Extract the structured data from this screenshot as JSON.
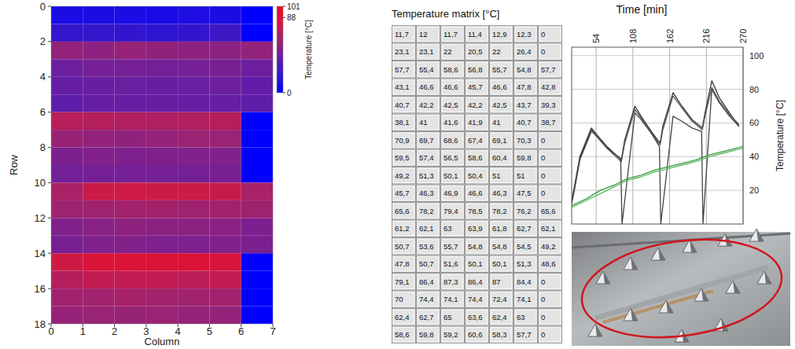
{
  "chart_data": [
    {
      "type": "heatmap",
      "xlabel": "Column",
      "ylabel": "Row",
      "xlim": [
        0,
        7
      ],
      "ylim": [
        0,
        18
      ],
      "xticks": [
        0,
        1,
        2,
        3,
        4,
        5,
        6,
        7
      ],
      "yticks": [
        0,
        2,
        4,
        6,
        8,
        10,
        12,
        14,
        16,
        18
      ],
      "cells": [
        [
          11.7,
          12,
          11.7,
          11.4,
          12.9,
          12.3,
          0
        ],
        [
          23.1,
          23.1,
          22,
          20.5,
          22,
          26.4,
          0
        ],
        [
          57.7,
          55.4,
          58.6,
          56.8,
          55.7,
          54.8,
          57.7
        ],
        [
          43.1,
          46.6,
          46.6,
          45.7,
          46.6,
          47.8,
          42.8
        ],
        [
          40.7,
          42.2,
          42.5,
          42.2,
          42.5,
          43.7,
          39.3
        ],
        [
          38.1,
          41,
          41.6,
          41.9,
          41,
          40.7,
          38.7
        ],
        [
          70.9,
          69.7,
          68.6,
          67.4,
          69.1,
          70.3,
          0
        ],
        [
          59.5,
          57.4,
          56.5,
          58.6,
          60.4,
          59.8,
          0
        ],
        [
          49.2,
          51.3,
          50.1,
          50.4,
          51,
          51,
          0
        ],
        [
          45.7,
          46.3,
          46.9,
          46.6,
          46.3,
          47.5,
          0
        ],
        [
          65.6,
          78.2,
          79.4,
          78.5,
          78.2,
          76.2,
          65.6
        ],
        [
          61.2,
          62.1,
          63,
          63.9,
          61.8,
          62.7,
          62.1
        ],
        [
          50.7,
          53.6,
          55.7,
          54.8,
          54.8,
          54.5,
          49.2
        ],
        [
          47.8,
          50.7,
          51.6,
          50.1,
          50.1,
          51.3,
          48.6
        ],
        [
          79.1,
          86.4,
          87.3,
          86.4,
          87,
          84.4,
          0
        ],
        [
          70,
          74.4,
          74.1,
          74.4,
          72.4,
          74.1,
          0
        ],
        [
          62.4,
          62.7,
          65,
          63.6,
          62.4,
          63,
          0
        ],
        [
          58.6,
          59.8,
          59.2,
          60.6,
          58.3,
          57.7,
          0
        ]
      ],
      "colorbar": {
        "label": "Temperature [°C]",
        "range": [
          0,
          101
        ],
        "ticks": [
          0,
          88,
          101
        ]
      }
    },
    {
      "type": "line",
      "title": "Time [min]",
      "ylabel": "Temperature [°C]",
      "xlim": [
        18,
        270
      ],
      "ylim": [
        0,
        105
      ],
      "xticks": [
        54,
        108,
        162,
        216,
        270
      ],
      "yticks": [
        20,
        40,
        60,
        80,
        100
      ],
      "grid": true,
      "series": [
        {
          "color": "#333333",
          "x": [
            18,
            22,
            30,
            47,
            55,
            70,
            91,
            96,
            111,
            120,
            135,
            148,
            152,
            167,
            180,
            195,
            210,
            214,
            224,
            235,
            250,
            264
          ],
          "values": [
            14,
            22,
            40,
            57,
            53,
            46,
            38,
            50,
            70,
            64,
            55,
            48,
            58,
            78,
            70,
            62,
            57,
            66,
            85,
            75,
            66,
            58
          ]
        },
        {
          "color": "#555555",
          "x": [
            18,
            22,
            30,
            47,
            55,
            70,
            91,
            96,
            111,
            120,
            135,
            148,
            152,
            167,
            180,
            195,
            210,
            214,
            224,
            235,
            250,
            264
          ],
          "values": [
            12,
            20,
            38,
            55,
            52,
            45,
            37,
            48,
            68,
            63,
            54,
            47,
            56,
            76,
            69,
            61,
            56,
            64,
            81,
            73,
            65,
            59
          ]
        },
        {
          "color": "#444444",
          "x": [
            18,
            22,
            30,
            47,
            55,
            70,
            90,
            92,
            111,
            120,
            135,
            147,
            149,
            167,
            180,
            195,
            209,
            211,
            224,
            235,
            250,
            264
          ],
          "values": [
            13,
            21,
            39,
            56,
            52,
            45,
            39,
            0,
            66,
            62,
            54,
            46,
            0,
            64,
            61,
            57,
            55,
            0,
            80,
            72,
            64,
            58
          ]
        },
        {
          "color": "#3a9a3a",
          "x": [
            18,
            40,
            60,
            80,
            100,
            120,
            140,
            160,
            180,
            200,
            220,
            240,
            260,
            270
          ],
          "values": [
            11,
            15,
            20,
            23,
            27,
            29,
            32,
            34,
            36,
            38,
            41,
            43,
            45,
            46
          ]
        },
        {
          "color": "#5cb85c",
          "x": [
            18,
            40,
            60,
            80,
            100,
            120,
            140,
            160,
            180,
            200,
            220,
            240,
            260,
            270
          ],
          "values": [
            10,
            14,
            18,
            22,
            26,
            28,
            31,
            33,
            35,
            37,
            40,
            42,
            44,
            45
          ]
        }
      ]
    }
  ],
  "table": {
    "title": "Temperature matrix [°C]",
    "rows": [
      [
        "11,7",
        "12",
        "11,7",
        "11,4",
        "12,9",
        "12,3",
        "0"
      ],
      [
        "23,1",
        "23,1",
        "22",
        "20,5",
        "22",
        "26,4",
        "0"
      ],
      [
        "57,7",
        "55,4",
        "58,6",
        "56,8",
        "55,7",
        "54,8",
        "57,7"
      ],
      [
        "43,1",
        "46,6",
        "46,6",
        "45,7",
        "46,6",
        "47,8",
        "42,8"
      ],
      [
        "40,7",
        "42,2",
        "42,5",
        "42,2",
        "42,5",
        "43,7",
        "39,3"
      ],
      [
        "38,1",
        "41",
        "41,6",
        "41,9",
        "41",
        "40,7",
        "38,7"
      ],
      [
        "70,9",
        "69,7",
        "68,6",
        "67,4",
        "69,1",
        "70,3",
        "0"
      ],
      [
        "59,5",
        "57,4",
        "56,5",
        "58,6",
        "60,4",
        "59,8",
        "0"
      ],
      [
        "49,2",
        "51,3",
        "50,1",
        "50,4",
        "51",
        "51",
        "0"
      ],
      [
        "45,7",
        "46,3",
        "46,9",
        "46,6",
        "46,3",
        "47,5",
        "0"
      ],
      [
        "65,6",
        "78,2",
        "79,4",
        "78,5",
        "78,2",
        "76,2",
        "65,6"
      ],
      [
        "61,2",
        "62,1",
        "63",
        "63,9",
        "61,8",
        "62,7",
        "62,1"
      ],
      [
        "50,7",
        "53,6",
        "55,7",
        "54,8",
        "54,8",
        "54,5",
        "49,2"
      ],
      [
        "47,8",
        "50,7",
        "51,6",
        "50,1",
        "50,1",
        "51,3",
        "48,6"
      ],
      [
        "79,1",
        "86,4",
        "87,3",
        "86,4",
        "87",
        "84,4",
        "0"
      ],
      [
        "70",
        "74,4",
        "74,1",
        "74,4",
        "72,4",
        "74,1",
        "0"
      ],
      [
        "62,4",
        "62,7",
        "65",
        "63,6",
        "62,4",
        "63",
        "0"
      ],
      [
        "58,6",
        "59,8",
        "59,2",
        "60,6",
        "58,3",
        "57,7",
        "0"
      ]
    ]
  }
}
